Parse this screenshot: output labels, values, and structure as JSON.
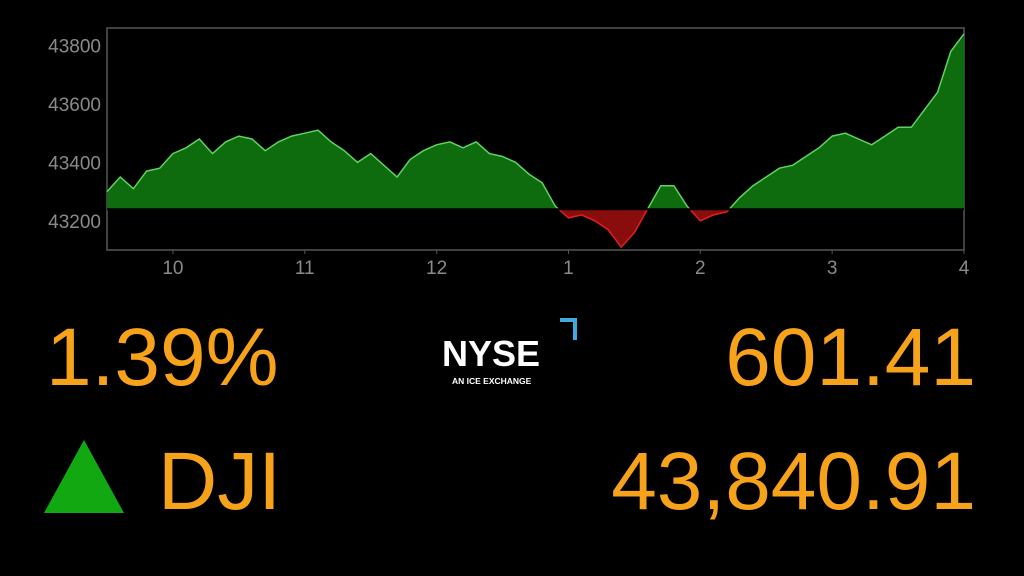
{
  "chart_data": {
    "type": "area",
    "x": [
      9.5,
      9.6,
      9.7,
      9.8,
      9.9,
      10.0,
      10.1,
      10.2,
      10.3,
      10.4,
      10.5,
      10.6,
      10.7,
      10.8,
      10.9,
      11.0,
      11.1,
      11.2,
      11.3,
      11.4,
      11.5,
      11.6,
      11.7,
      11.8,
      11.9,
      12.0,
      12.1,
      12.2,
      12.3,
      12.4,
      12.5,
      12.6,
      12.7,
      12.8,
      12.9,
      13.0,
      13.1,
      13.2,
      13.3,
      13.4,
      13.5,
      13.6,
      13.7,
      13.8,
      13.9,
      14.0,
      14.1,
      14.2,
      14.3,
      14.4,
      14.5,
      14.6,
      14.7,
      14.8,
      14.9,
      15.0,
      15.1,
      15.2,
      15.3,
      15.4,
      15.5,
      15.6,
      15.7,
      15.8,
      15.9,
      16.0
    ],
    "values": [
      43300,
      43350,
      43310,
      43370,
      43380,
      43430,
      43450,
      43480,
      43430,
      43470,
      43490,
      43480,
      43440,
      43470,
      43490,
      43500,
      43510,
      43470,
      43440,
      43400,
      43430,
      43390,
      43350,
      43410,
      43440,
      43460,
      43470,
      43450,
      43470,
      43430,
      43420,
      43400,
      43360,
      43330,
      43250,
      43210,
      43220,
      43200,
      43170,
      43110,
      43160,
      43240,
      43320,
      43320,
      43250,
      43200,
      43220,
      43230,
      43280,
      43320,
      43350,
      43380,
      43390,
      43420,
      43450,
      43490,
      43500,
      43480,
      43460,
      43490,
      43520,
      43520,
      43580,
      43640,
      43780,
      43840
    ],
    "baseline": 43239.5,
    "up_color": "#0e6b0e",
    "up_line_color": "#5fd35f",
    "down_color": "#8a0d0d",
    "down_line_color": "#e02020",
    "xlim": [
      9.5,
      16
    ],
    "ylim": [
      43100,
      43860
    ],
    "xticks": [
      10,
      11,
      12,
      {
        "value": 13,
        "label": "1"
      },
      {
        "value": 14,
        "label": "2"
      },
      {
        "value": 15,
        "label": "3"
      },
      {
        "value": 16,
        "label": "4"
      }
    ],
    "yticks": [
      43200,
      43400,
      43600,
      43800
    ],
    "grid": false
  },
  "ticker": {
    "percent_change": "1.39%",
    "point_change": "601.41",
    "symbol": "DJI",
    "price": "43,840.91",
    "logo": "NYSE",
    "logo_subtitle": "AN ICE EXCHANGE"
  }
}
